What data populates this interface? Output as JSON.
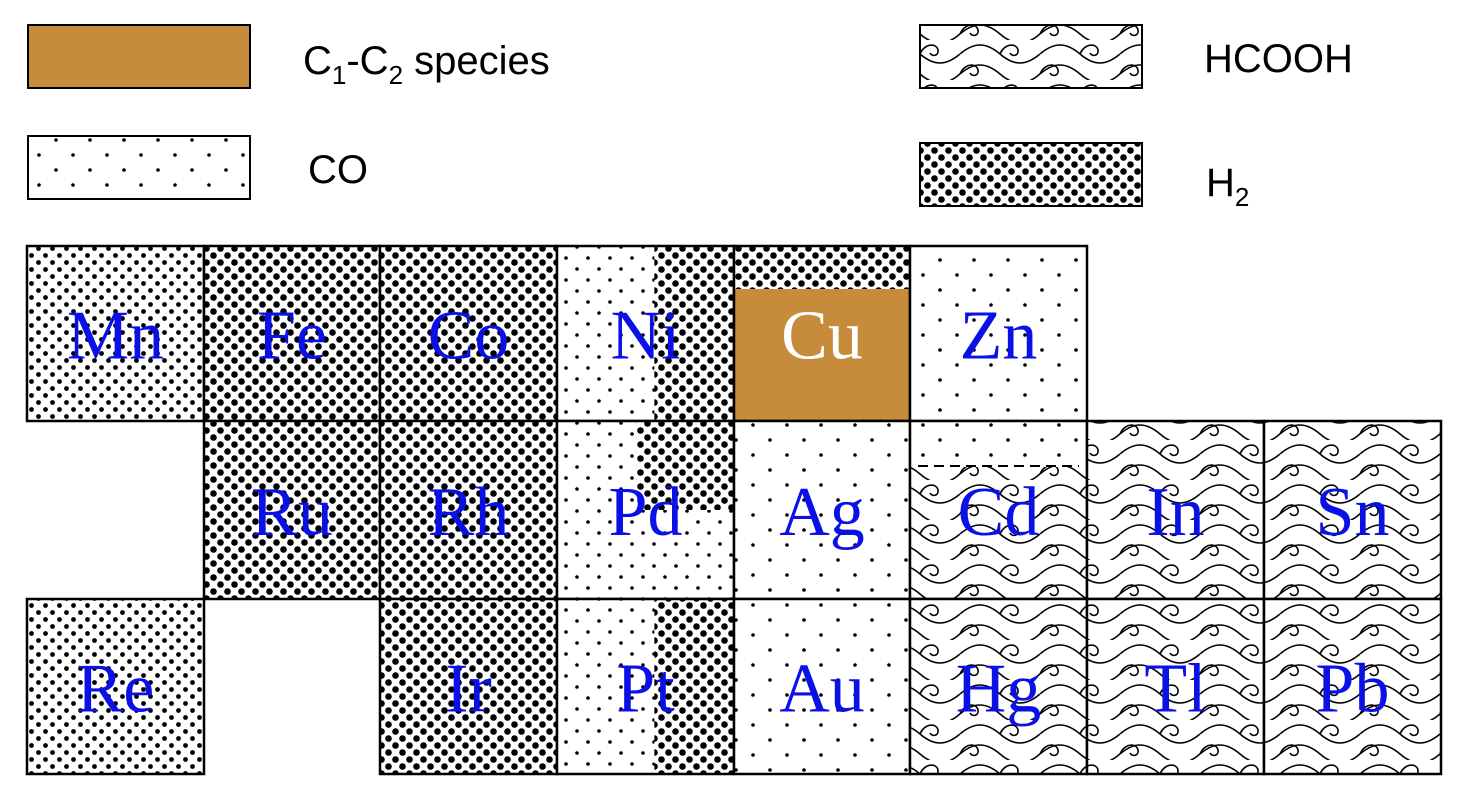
{
  "colors": {
    "c1c2": "#c68c3c",
    "element_label": "#0a10e6",
    "element_label_on_fill": "#ffffff",
    "border": "#000000"
  },
  "legend": [
    {
      "key": "c1c2",
      "label_parts": [
        "C",
        "1",
        "-C",
        "2",
        " species"
      ]
    },
    {
      "key": "co",
      "label_parts": [
        "CO"
      ]
    },
    {
      "key": "hcooh",
      "label_parts": [
        "HCOOH"
      ]
    },
    {
      "key": "h2",
      "label_parts": [
        "H",
        "2"
      ]
    }
  ],
  "table": {
    "rows": [
      [
        {
          "symbol": "Mn",
          "product": "h2_light"
        },
        {
          "symbol": "Fe",
          "product": "h2"
        },
        {
          "symbol": "Co",
          "product": "h2"
        },
        {
          "symbol": "Ni",
          "product": "h2_gradient"
        },
        {
          "symbol": "Cu",
          "product": "c1c2",
          "cap": "h2"
        },
        {
          "symbol": "Zn",
          "product": "co"
        }
      ],
      [
        null,
        {
          "symbol": "Ru",
          "product": "h2"
        },
        {
          "symbol": "Rh",
          "product": "h2"
        },
        {
          "symbol": "Pd",
          "product": "h2_gradient_top"
        },
        {
          "symbol": "Ag",
          "product": "co"
        },
        {
          "symbol": "Cd",
          "product": "hcooh",
          "cap": "co"
        },
        {
          "symbol": "In",
          "product": "hcooh"
        },
        {
          "symbol": "Sn",
          "product": "hcooh"
        }
      ],
      [
        {
          "symbol": "Re",
          "product": "h2_light"
        },
        null,
        {
          "symbol": "Ir",
          "product": "h2"
        },
        {
          "symbol": "Pt",
          "product": "h2_gradient"
        },
        {
          "symbol": "Au",
          "product": "co"
        },
        {
          "symbol": "Hg",
          "product": "hcooh"
        },
        {
          "symbol": "Tl",
          "product": "hcooh"
        },
        {
          "symbol": "Pb",
          "product": "hcooh"
        }
      ]
    ]
  }
}
